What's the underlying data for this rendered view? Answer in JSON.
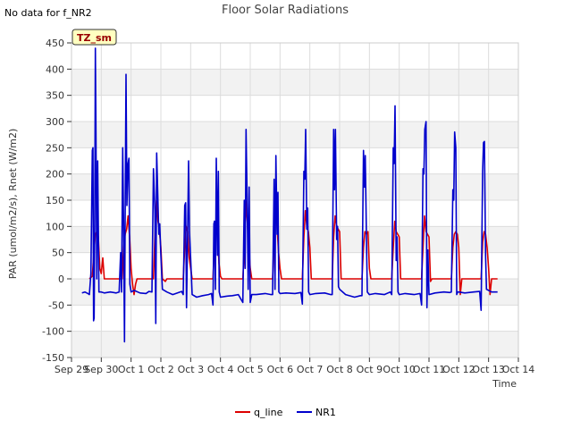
{
  "chart_data": {
    "type": "line",
    "title": "Floor Solar Radiations",
    "note": "No data for f_NR2",
    "badge": "TZ_sm",
    "xlabel": "Time",
    "ylabel": "PAR (umol/m2/s), Rnet (W/m2)",
    "ylim": [
      -150,
      450
    ],
    "yticks": [
      -150,
      -100,
      -50,
      0,
      50,
      100,
      150,
      200,
      250,
      300,
      350,
      400,
      450
    ],
    "xlim": [
      0,
      15
    ],
    "xticks": [
      {
        "pos": 0,
        "label": "Sep 29"
      },
      {
        "pos": 1,
        "label": "Sep 30"
      },
      {
        "pos": 2,
        "label": "Oct 1"
      },
      {
        "pos": 3,
        "label": "Oct 2"
      },
      {
        "pos": 4,
        "label": "Oct 3"
      },
      {
        "pos": 5,
        "label": "Oct 4"
      },
      {
        "pos": 6,
        "label": "Oct 5"
      },
      {
        "pos": 7,
        "label": "Oct 6"
      },
      {
        "pos": 8,
        "label": "Oct 7"
      },
      {
        "pos": 9,
        "label": "Oct 8"
      },
      {
        "pos": 10,
        "label": "Oct 9"
      },
      {
        "pos": 11,
        "label": "Oct 10"
      },
      {
        "pos": 12,
        "label": "Oct 11"
      },
      {
        "pos": 13,
        "label": "Oct 12"
      },
      {
        "pos": 14,
        "label": "Oct 13"
      },
      {
        "pos": 15,
        "label": "Oct 14"
      }
    ],
    "series": [
      {
        "name": "q_line",
        "color": "#dd0000",
        "points": [
          [
            0.6,
            0
          ],
          [
            0.7,
            5
          ],
          [
            0.75,
            50
          ],
          [
            0.8,
            85
          ],
          [
            0.85,
            90
          ],
          [
            0.9,
            80
          ],
          [
            0.95,
            20
          ],
          [
            1.0,
            10
          ],
          [
            1.05,
            40
          ],
          [
            1.1,
            0
          ],
          [
            1.3,
            0
          ],
          [
            1.45,
            0
          ],
          [
            1.7,
            0
          ],
          [
            1.75,
            60
          ],
          [
            1.8,
            85
          ],
          [
            1.85,
            95
          ],
          [
            1.9,
            120
          ],
          [
            1.95,
            80
          ],
          [
            2.0,
            20
          ],
          [
            2.05,
            -10
          ],
          [
            2.1,
            -30
          ],
          [
            2.15,
            -10
          ],
          [
            2.2,
            0
          ],
          [
            2.6,
            0
          ],
          [
            2.75,
            0
          ],
          [
            2.8,
            80
          ],
          [
            2.85,
            150
          ],
          [
            2.9,
            110
          ],
          [
            2.95,
            95
          ],
          [
            3.0,
            60
          ],
          [
            3.05,
            0
          ],
          [
            3.15,
            -5
          ],
          [
            3.2,
            0
          ],
          [
            3.6,
            0
          ],
          [
            3.75,
            0
          ],
          [
            3.8,
            60
          ],
          [
            3.85,
            100
          ],
          [
            3.9,
            90
          ],
          [
            3.95,
            40
          ],
          [
            4.0,
            20
          ],
          [
            4.05,
            0
          ],
          [
            4.6,
            0
          ],
          [
            4.75,
            0
          ],
          [
            4.8,
            70
          ],
          [
            4.85,
            110
          ],
          [
            4.9,
            90
          ],
          [
            4.95,
            30
          ],
          [
            5.0,
            5
          ],
          [
            5.05,
            0
          ],
          [
            5.6,
            0
          ],
          [
            5.75,
            0
          ],
          [
            5.8,
            50
          ],
          [
            5.85,
            150
          ],
          [
            5.9,
            110
          ],
          [
            5.95,
            60
          ],
          [
            6.0,
            20
          ],
          [
            6.05,
            0
          ],
          [
            6.6,
            0
          ],
          [
            6.75,
            0
          ],
          [
            6.8,
            80
          ],
          [
            6.85,
            140
          ],
          [
            6.9,
            100
          ],
          [
            6.95,
            50
          ],
          [
            7.0,
            20
          ],
          [
            7.05,
            0
          ],
          [
            7.6,
            0
          ],
          [
            7.75,
            0
          ],
          [
            7.8,
            80
          ],
          [
            7.85,
            130
          ],
          [
            7.9,
            100
          ],
          [
            7.95,
            90
          ],
          [
            8.0,
            60
          ],
          [
            8.05,
            0
          ],
          [
            8.6,
            0
          ],
          [
            8.75,
            0
          ],
          [
            8.8,
            80
          ],
          [
            8.85,
            120
          ],
          [
            8.9,
            100
          ],
          [
            8.95,
            95
          ],
          [
            9.0,
            90
          ],
          [
            9.05,
            0
          ],
          [
            9.6,
            0
          ],
          [
            9.75,
            0
          ],
          [
            9.8,
            60
          ],
          [
            9.85,
            90
          ],
          [
            9.9,
            85
          ],
          [
            9.95,
            90
          ],
          [
            10.0,
            20
          ],
          [
            10.05,
            0
          ],
          [
            10.6,
            0
          ],
          [
            10.75,
            0
          ],
          [
            10.8,
            60
          ],
          [
            10.85,
            110
          ],
          [
            10.9,
            90
          ],
          [
            10.95,
            85
          ],
          [
            11.0,
            80
          ],
          [
            11.05,
            0
          ],
          [
            11.6,
            0
          ],
          [
            11.75,
            0
          ],
          [
            11.8,
            60
          ],
          [
            11.85,
            120
          ],
          [
            11.9,
            90
          ],
          [
            11.95,
            85
          ],
          [
            12.0,
            80
          ],
          [
            12.05,
            -5
          ],
          [
            12.1,
            0
          ],
          [
            12.6,
            0
          ],
          [
            12.75,
            0
          ],
          [
            12.8,
            60
          ],
          [
            12.85,
            85
          ],
          [
            12.9,
            90
          ],
          [
            12.95,
            85
          ],
          [
            13.0,
            60
          ],
          [
            13.05,
            -30
          ],
          [
            13.1,
            0
          ],
          [
            13.6,
            0
          ],
          [
            13.75,
            0
          ],
          [
            13.8,
            70
          ],
          [
            13.85,
            90
          ],
          [
            13.9,
            85
          ],
          [
            13.95,
            60
          ],
          [
            14.0,
            20
          ],
          [
            14.05,
            -30
          ],
          [
            14.1,
            0
          ],
          [
            14.3,
            0
          ]
        ]
      },
      {
        "name": "NR1",
        "color": "#0000cc",
        "points": [
          [
            0.35,
            -27
          ],
          [
            0.45,
            -25
          ],
          [
            0.55,
            -28
          ],
          [
            0.6,
            -30
          ],
          [
            0.65,
            10
          ],
          [
            0.7,
            245
          ],
          [
            0.72,
            250
          ],
          [
            0.74,
            -80
          ],
          [
            0.76,
            -75
          ],
          [
            0.78,
            100
          ],
          [
            0.8,
            440
          ],
          [
            0.82,
            300
          ],
          [
            0.85,
            0
          ],
          [
            0.88,
            225
          ],
          [
            0.9,
            100
          ],
          [
            0.92,
            -25
          ],
          [
            1.0,
            -25
          ],
          [
            1.1,
            -27
          ],
          [
            1.3,
            -25
          ],
          [
            1.5,
            -27
          ],
          [
            1.6,
            -25
          ],
          [
            1.65,
            50
          ],
          [
            1.68,
            -25
          ],
          [
            1.72,
            250
          ],
          [
            1.75,
            100
          ],
          [
            1.78,
            -120
          ],
          [
            1.8,
            110
          ],
          [
            1.83,
            390
          ],
          [
            1.86,
            140
          ],
          [
            1.9,
            220
          ],
          [
            1.93,
            230
          ],
          [
            1.96,
            -10
          ],
          [
            2.0,
            -25
          ],
          [
            2.1,
            -22
          ],
          [
            2.3,
            -27
          ],
          [
            2.5,
            -28
          ],
          [
            2.6,
            -24
          ],
          [
            2.7,
            -25
          ],
          [
            2.75,
            210
          ],
          [
            2.8,
            130
          ],
          [
            2.83,
            -85
          ],
          [
            2.86,
            240
          ],
          [
            2.9,
            150
          ],
          [
            2.93,
            85
          ],
          [
            2.96,
            105
          ],
          [
            3.0,
            45
          ],
          [
            3.05,
            -20
          ],
          [
            3.2,
            -25
          ],
          [
            3.4,
            -30
          ],
          [
            3.6,
            -26
          ],
          [
            3.7,
            -24
          ],
          [
            3.75,
            -30
          ],
          [
            3.8,
            140
          ],
          [
            3.83,
            145
          ],
          [
            3.86,
            -55
          ],
          [
            3.9,
            95
          ],
          [
            3.93,
            225
          ],
          [
            3.96,
            90
          ],
          [
            4.0,
            40
          ],
          [
            4.05,
            -30
          ],
          [
            4.2,
            -35
          ],
          [
            4.4,
            -32
          ],
          [
            4.6,
            -30
          ],
          [
            4.7,
            -28
          ],
          [
            4.75,
            -50
          ],
          [
            4.78,
            105
          ],
          [
            4.8,
            110
          ],
          [
            4.83,
            -20
          ],
          [
            4.86,
            230
          ],
          [
            4.9,
            45
          ],
          [
            4.93,
            205
          ],
          [
            4.96,
            -25
          ],
          [
            5.0,
            -35
          ],
          [
            5.2,
            -33
          ],
          [
            5.4,
            -32
          ],
          [
            5.6,
            -30
          ],
          [
            5.7,
            -40
          ],
          [
            5.75,
            -45
          ],
          [
            5.8,
            150
          ],
          [
            5.83,
            20
          ],
          [
            5.86,
            285
          ],
          [
            5.9,
            130
          ],
          [
            5.93,
            -20
          ],
          [
            5.96,
            175
          ],
          [
            6.0,
            -45
          ],
          [
            6.05,
            -30
          ],
          [
            6.2,
            -30
          ],
          [
            6.5,
            -28
          ],
          [
            6.7,
            -30
          ],
          [
            6.75,
            -30
          ],
          [
            6.8,
            190
          ],
          [
            6.83,
            -20
          ],
          [
            6.86,
            235
          ],
          [
            6.9,
            85
          ],
          [
            6.93,
            165
          ],
          [
            6.96,
            -25
          ],
          [
            7.0,
            -28
          ],
          [
            7.2,
            -27
          ],
          [
            7.5,
            -28
          ],
          [
            7.7,
            -26
          ],
          [
            7.75,
            -48
          ],
          [
            7.8,
            205
          ],
          [
            7.83,
            190
          ],
          [
            7.86,
            285
          ],
          [
            7.9,
            95
          ],
          [
            7.93,
            135
          ],
          [
            7.96,
            -25
          ],
          [
            8.0,
            -30
          ],
          [
            8.2,
            -28
          ],
          [
            8.5,
            -27
          ],
          [
            8.7,
            -30
          ],
          [
            8.75,
            -30
          ],
          [
            8.8,
            285
          ],
          [
            8.83,
            170
          ],
          [
            8.86,
            285
          ],
          [
            8.9,
            75
          ],
          [
            8.93,
            100
          ],
          [
            8.96,
            -15
          ],
          [
            9.0,
            -20
          ],
          [
            9.2,
            -30
          ],
          [
            9.5,
            -35
          ],
          [
            9.7,
            -32
          ],
          [
            9.75,
            -32
          ],
          [
            9.8,
            245
          ],
          [
            9.83,
            175
          ],
          [
            9.86,
            235
          ],
          [
            9.9,
            80
          ],
          [
            9.93,
            -25
          ],
          [
            10.0,
            -30
          ],
          [
            10.2,
            -28
          ],
          [
            10.5,
            -30
          ],
          [
            10.7,
            -25
          ],
          [
            10.75,
            -30
          ],
          [
            10.8,
            250
          ],
          [
            10.83,
            220
          ],
          [
            10.86,
            330
          ],
          [
            10.9,
            35
          ],
          [
            10.93,
            80
          ],
          [
            10.96,
            -25
          ],
          [
            11.0,
            -30
          ],
          [
            11.2,
            -28
          ],
          [
            11.5,
            -30
          ],
          [
            11.7,
            -28
          ],
          [
            11.75,
            -50
          ],
          [
            11.8,
            210
          ],
          [
            11.83,
            200
          ],
          [
            11.86,
            285
          ],
          [
            11.9,
            300
          ],
          [
            11.93,
            -55
          ],
          [
            11.96,
            55
          ],
          [
            12.0,
            -30
          ],
          [
            12.2,
            -27
          ],
          [
            12.5,
            -25
          ],
          [
            12.7,
            -26
          ],
          [
            12.75,
            -25
          ],
          [
            12.8,
            170
          ],
          [
            12.83,
            150
          ],
          [
            12.86,
            280
          ],
          [
            12.9,
            250
          ],
          [
            12.93,
            -30
          ],
          [
            12.96,
            -25
          ],
          [
            13.0,
            -25
          ],
          [
            13.2,
            -27
          ],
          [
            13.5,
            -25
          ],
          [
            13.7,
            -24
          ],
          [
            13.75,
            -60
          ],
          [
            13.8,
            205
          ],
          [
            13.83,
            260
          ],
          [
            13.86,
            262
          ],
          [
            13.9,
            45
          ],
          [
            13.93,
            -20
          ],
          [
            14.0,
            -22
          ],
          [
            14.1,
            -25
          ],
          [
            14.3,
            -25
          ]
        ]
      }
    ]
  }
}
